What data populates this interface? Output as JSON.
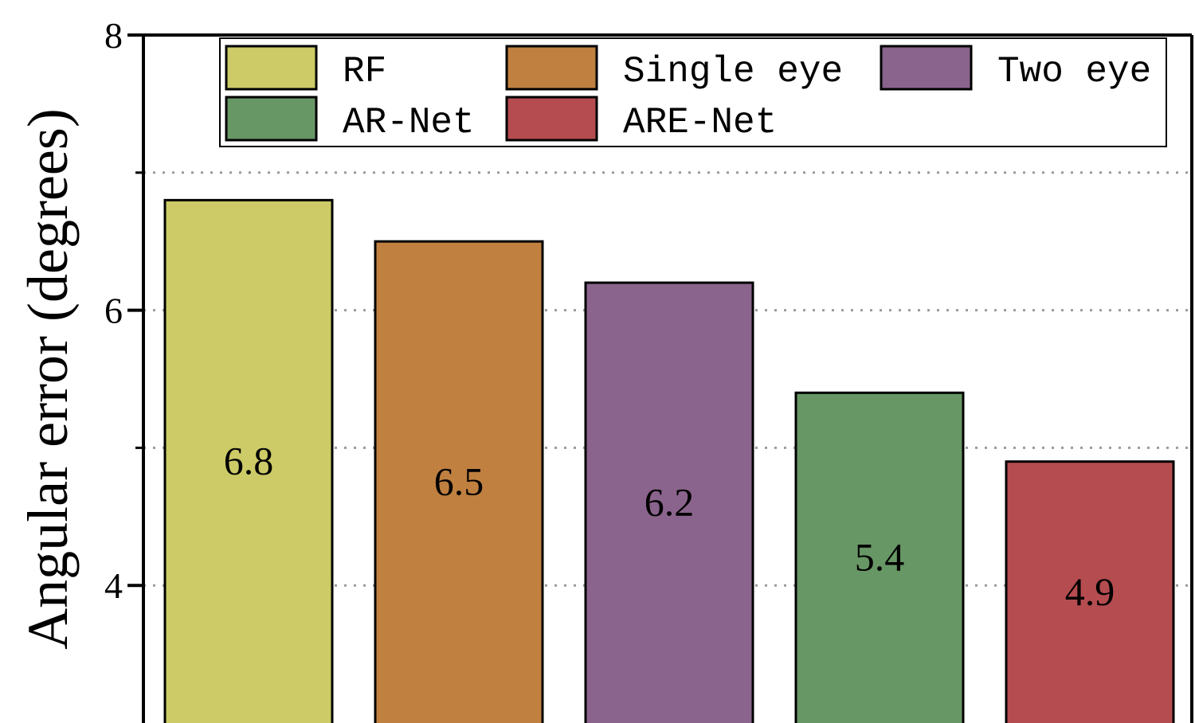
{
  "chart_data": {
    "type": "bar",
    "categories": [
      "RF",
      "Single eye",
      "Two eye",
      "AR-Net",
      "ARE-Net"
    ],
    "values": [
      6.8,
      6.5,
      6.2,
      5.4,
      4.9
    ],
    "data_labels": [
      "6.8",
      "6.5",
      "6.2",
      "5.4",
      "4.9"
    ],
    "colors": [
      "#cdcb67",
      "#c08040",
      "#8a648c",
      "#679765",
      "#b44c50"
    ],
    "ylabel": "Angular error (degrees)",
    "ylim": [
      3,
      8
    ],
    "yticks": [
      4,
      6,
      8
    ],
    "ytick_labels": [
      "4",
      "6",
      "8"
    ],
    "minor_gridlines": [
      5,
      7
    ],
    "grid": "horizontal dotted",
    "legend": {
      "placement": "top",
      "entries": [
        "RF",
        "Single eye",
        "Two eye",
        "AR-Net",
        "ARE-Net"
      ]
    }
  }
}
